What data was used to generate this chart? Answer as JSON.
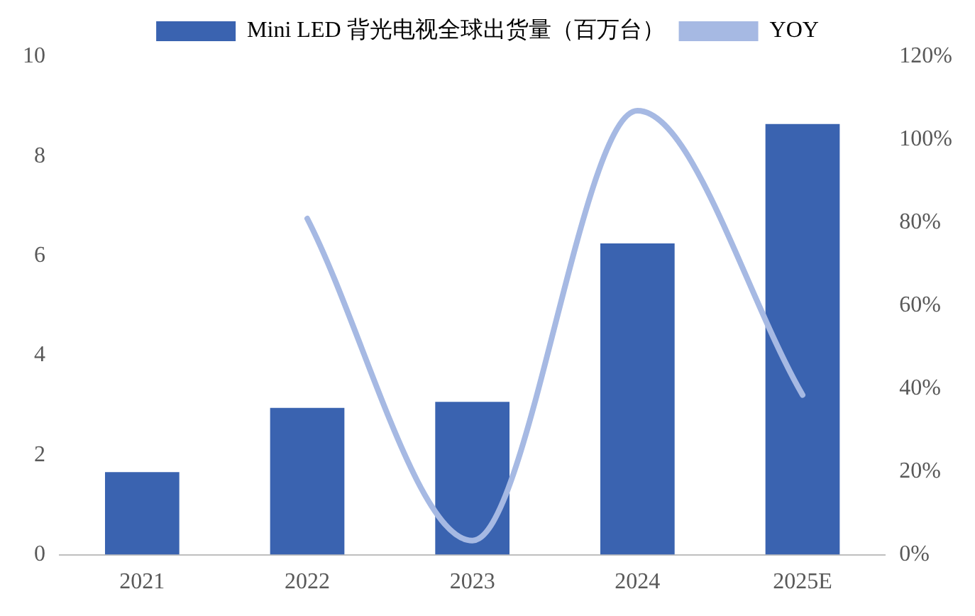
{
  "chart_data": {
    "type": "bar",
    "categories": [
      "2021",
      "2022",
      "2023",
      "2024",
      "2025E"
    ],
    "series": [
      {
        "name": "Mini LED 背光电视全球出货量（百万台）",
        "color": "#3a63b0",
        "values": [
          1.66,
          2.95,
          3.07,
          6.25,
          8.65
        ]
      },
      {
        "name": "YOY",
        "type": "line",
        "axis": "y2",
        "color": "#a6b9e3",
        "values": [
          null,
          81,
          3.4,
          107,
          38.5
        ]
      }
    ],
    "ylim": [
      0,
      10
    ],
    "yticks": [
      0,
      2,
      4,
      6,
      8,
      10
    ],
    "y2lim": [
      0,
      120
    ],
    "y2ticks": [
      {
        "value": 0,
        "label": "0%"
      },
      {
        "value": 20,
        "label": "20%"
      },
      {
        "value": 40,
        "label": "40%"
      },
      {
        "value": 60,
        "label": "60%"
      },
      {
        "value": 80,
        "label": "80%"
      },
      {
        "value": 100,
        "label": "100%"
      },
      {
        "value": 120,
        "label": "120%"
      }
    ],
    "grid": false,
    "legend": "top",
    "marker": "none",
    "line_style": "solid"
  }
}
